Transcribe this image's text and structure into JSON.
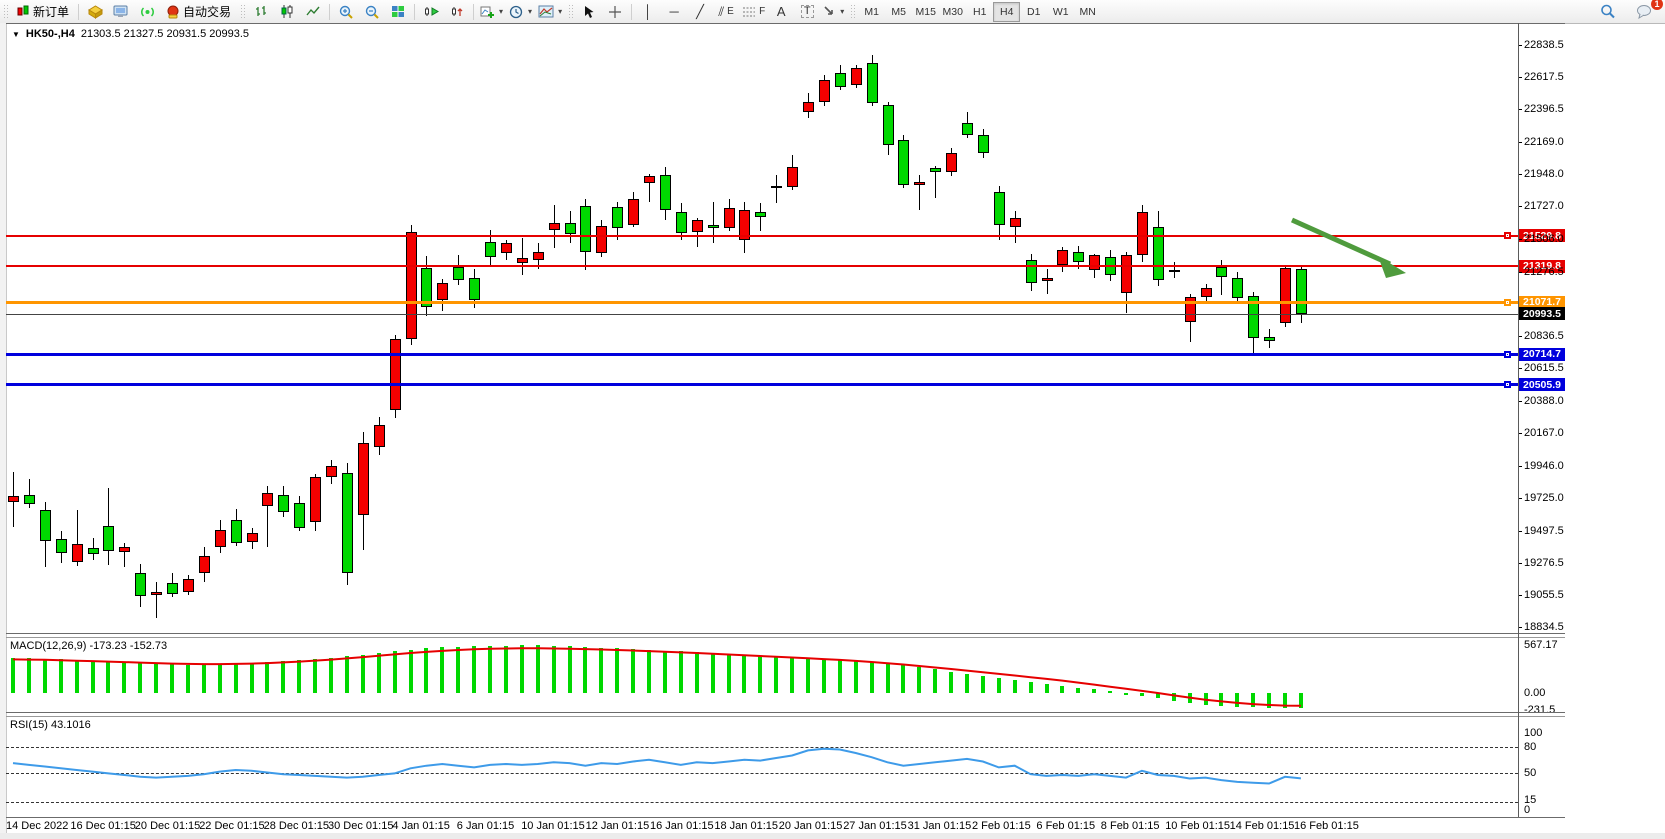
{
  "toolbar": {
    "new_order_label": "新订单",
    "auto_trading_label": "自动交易",
    "timeframes": [
      "M1",
      "M5",
      "M15",
      "M30",
      "H1",
      "H4",
      "D1",
      "W1",
      "MN"
    ],
    "active_timeframe": "H4",
    "notification_count": "1",
    "text_tool_label": "A",
    "channel_tool_sub": "E",
    "fibo_tool_sub": "F",
    "label_tool_label": "T"
  },
  "chart_data": {
    "type": "candlestick",
    "symbol": "HK50-,H4",
    "ohlc_text": "21303.5 21327.5 20931.5 20993.5",
    "last_ohlc": {
      "open": 21303.5,
      "high": 21327.5,
      "low": 20931.5,
      "close": 20993.5
    },
    "current_price": 20993.5,
    "up_color": "#f40000",
    "down_color": "#00d800",
    "y_axis_ticks": [
      22838.5,
      22617.5,
      22396.5,
      22169.0,
      21948.0,
      21727.0,
      21506.0,
      21276.5,
      20836.5,
      20615.5,
      20388.0,
      20167.0,
      19946.0,
      19725.0,
      19497.5,
      19276.5,
      19055.5,
      18834.5
    ],
    "hlines": [
      {
        "price": 21529.8,
        "color": "#e60000",
        "thick": 2,
        "handle": true
      },
      {
        "price": 21319.8,
        "color": "#e60000",
        "thick": 2,
        "handle": false
      },
      {
        "price": 21071.7,
        "color": "#ff9500",
        "thick": 3,
        "handle": true
      },
      {
        "price": 20714.7,
        "color": "#0000dd",
        "thick": 3,
        "handle": true
      },
      {
        "price": 20505.9,
        "color": "#0000dd",
        "thick": 3,
        "handle": true
      }
    ],
    "x_labels": [
      "14 Dec 2022",
      "16 Dec 01:15",
      "20 Dec 01:15",
      "22 Dec 01:15",
      "28 Dec 01:15",
      "30 Dec 01:15",
      "4 Jan 01:15",
      "6 Jan 01:15",
      "10 Jan 01:15",
      "12 Jan 01:15",
      "16 Jan 01:15",
      "18 Jan 01:15",
      "20 Jan 01:15",
      "27 Jan 01:15",
      "31 Jan 01:15",
      "2 Feb 01:15",
      "6 Feb 01:15",
      "8 Feb 01:15",
      "10 Feb 01:15",
      "14 Feb 01:15",
      "16 Feb 01:15"
    ],
    "candles": [
      [
        19700,
        19906,
        19528,
        19740
      ],
      [
        19745,
        19858,
        19660,
        19686
      ],
      [
        19645,
        19700,
        19256,
        19430
      ],
      [
        19447,
        19500,
        19283,
        19352
      ],
      [
        19285,
        19645,
        19260,
        19413
      ],
      [
        19386,
        19450,
        19300,
        19345
      ],
      [
        19536,
        19796,
        19266,
        19360
      ],
      [
        19359,
        19420,
        19256,
        19393
      ],
      [
        19214,
        19274,
        18979,
        19057
      ],
      [
        19064,
        19153,
        18903,
        19083
      ],
      [
        19146,
        19212,
        19050,
        19071
      ],
      [
        19085,
        19200,
        19060,
        19173
      ],
      [
        19212,
        19393,
        19150,
        19331
      ],
      [
        19393,
        19578,
        19350,
        19509
      ],
      [
        19578,
        19650,
        19400,
        19420
      ],
      [
        19427,
        19520,
        19380,
        19490
      ],
      [
        19670,
        19810,
        19390,
        19760
      ],
      [
        19750,
        19810,
        19600,
        19630
      ],
      [
        19690,
        19740,
        19500,
        19520
      ],
      [
        19560,
        19890,
        19500,
        19870
      ],
      [
        19870,
        19990,
        19820,
        19950
      ],
      [
        19900,
        19970,
        19129,
        19212
      ],
      [
        19612,
        20183,
        19372,
        20107
      ],
      [
        20080,
        20286,
        20020,
        20231
      ],
      [
        20330,
        20850,
        20280,
        20816
      ],
      [
        20816,
        21600,
        20780,
        21554
      ],
      [
        21307,
        21390,
        20980,
        21039
      ],
      [
        21087,
        21230,
        21010,
        21204
      ],
      [
        21314,
        21397,
        21190,
        21225
      ],
      [
        21238,
        21300,
        21032,
        21087
      ],
      [
        21486,
        21568,
        21330,
        21383
      ],
      [
        21410,
        21500,
        21360,
        21479
      ],
      [
        21341,
        21513,
        21259,
        21375
      ],
      [
        21362,
        21480,
        21300,
        21417
      ],
      [
        21568,
        21740,
        21444,
        21616
      ],
      [
        21616,
        21700,
        21480,
        21540
      ],
      [
        21732,
        21780,
        21294,
        21417
      ],
      [
        21410,
        21640,
        21380,
        21595
      ],
      [
        21726,
        21760,
        21500,
        21582
      ],
      [
        21602,
        21829,
        21588,
        21781
      ],
      [
        21890,
        21950,
        21760,
        21939
      ],
      [
        21945,
        22000,
        21636,
        21705
      ],
      [
        21692,
        21750,
        21500,
        21547
      ],
      [
        21554,
        21650,
        21451,
        21636
      ],
      [
        21602,
        21760,
        21480,
        21582
      ],
      [
        21582,
        21780,
        21560,
        21719
      ],
      [
        21499,
        21760,
        21410,
        21705
      ],
      [
        21690,
        21750,
        21560,
        21655
      ],
      [
        21860,
        21945,
        21753,
        21872
      ],
      [
        21860,
        22080,
        21840,
        22000
      ],
      [
        22375,
        22508,
        22340,
        22445
      ],
      [
        22445,
        22632,
        22420,
        22598
      ],
      [
        22644,
        22700,
        22530,
        22548
      ],
      [
        22563,
        22700,
        22540,
        22680
      ],
      [
        22714,
        22770,
        22420,
        22440
      ],
      [
        22426,
        22450,
        22080,
        22151
      ],
      [
        22185,
        22220,
        21856,
        21876
      ],
      [
        21880,
        21945,
        21705,
        21897
      ],
      [
        21993,
        22010,
        21787,
        21966
      ],
      [
        21966,
        22131,
        21940,
        22096
      ],
      [
        22302,
        22378,
        22200,
        22220
      ],
      [
        22220,
        22260,
        22060,
        22096
      ],
      [
        21829,
        21870,
        21499,
        21602
      ],
      [
        21588,
        21700,
        21480,
        21650
      ],
      [
        21361,
        21400,
        21150,
        21203
      ],
      [
        21220,
        21300,
        21130,
        21235
      ],
      [
        21327,
        21450,
        21280,
        21430
      ],
      [
        21417,
        21460,
        21300,
        21348
      ],
      [
        21293,
        21400,
        21240,
        21396
      ],
      [
        21382,
        21430,
        21220,
        21259
      ],
      [
        21135,
        21420,
        21000,
        21396
      ],
      [
        21396,
        21740,
        21350,
        21692
      ],
      [
        21588,
        21700,
        21180,
        21224
      ],
      [
        21290,
        21345,
        21235,
        21292
      ],
      [
        20936,
        21130,
        20799,
        21108
      ],
      [
        21108,
        21200,
        21080,
        21170
      ],
      [
        21314,
        21360,
        21120,
        21245
      ],
      [
        21238,
        21280,
        21080,
        21101
      ],
      [
        21115,
        21140,
        20723,
        20826
      ],
      [
        20833,
        20890,
        20760,
        20806
      ],
      [
        20929,
        21330,
        20900,
        21307
      ],
      [
        21303.5,
        21327.5,
        20931.5,
        20993.5
      ]
    ],
    "indicators": {
      "macd": {
        "label": "MACD(12,26,9) -173.23 -152.73",
        "axis_labels": [
          "567.17",
          "0.00",
          "-231.5"
        ],
        "histogram": [
          420,
          414,
          408,
          400,
          392,
          385,
          378,
          370,
          360,
          350,
          340,
          332,
          334,
          342,
          352,
          360,
          370,
          382,
          395,
          408,
          420,
          436,
          455,
          478,
          500,
          518,
          532,
          543,
          552,
          558,
          562,
          565,
          567,
          566,
          562,
          556,
          548,
          540,
          532,
          524,
          515,
          506,
          496,
          486,
          476,
          466,
          456,
          446,
          436,
          426,
          418,
          410,
          400,
          388,
          372,
          352,
          330,
          306,
          282,
          256,
          230,
          204,
          178,
          152,
          126,
          102,
          80,
          62,
          46,
          20,
          -8,
          -35,
          -65,
          -95,
          -120,
          -140,
          -155,
          -165,
          -172,
          -177,
          -175,
          -173.23
        ],
        "signal": [
          400,
          398,
          395,
          390,
          385,
          380,
          374,
          368,
          362,
          356,
          350,
          346,
          344,
          344,
          346,
          350,
          356,
          364,
          374,
          386,
          398,
          412,
          428,
          444,
          460,
          476,
          490,
          502,
          512,
          520,
          526,
          530,
          532,
          532,
          530,
          527,
          523,
          518,
          512,
          506,
          499,
          492,
          484,
          476,
          468,
          459,
          450,
          441,
          432,
          423,
          414,
          404,
          394,
          382,
          369,
          355,
          339,
          322,
          304,
          286,
          267,
          248,
          228,
          208,
          188,
          168,
          148,
          124,
          100,
          75,
          50,
          25,
          0,
          -28,
          -55,
          -80,
          -100,
          -118,
          -132,
          -143,
          -150,
          -152.73
        ]
      },
      "rsi": {
        "label": "RSI(15) 43.1016",
        "axis_labels": [
          "100",
          "80",
          "50",
          "15",
          "0"
        ],
        "levels": [
          80,
          50,
          15
        ],
        "values": [
          61,
          59,
          57,
          55,
          53,
          51,
          49,
          47,
          45,
          44,
          45,
          46,
          48,
          51,
          53,
          52,
          50,
          48,
          47,
          46,
          45,
          44,
          45,
          47,
          49,
          55,
          58,
          60,
          58,
          56,
          59,
          60,
          59,
          60,
          62,
          61,
          58,
          61,
          60,
          63,
          65,
          62,
          59,
          62,
          61,
          63,
          65,
          64,
          67,
          70,
          76,
          78,
          77,
          73,
          68,
          62,
          58,
          60,
          62,
          64,
          66,
          63,
          56,
          58,
          48,
          46,
          47,
          46,
          48,
          46,
          44,
          52,
          47,
          46,
          43,
          44,
          41,
          39,
          38,
          37,
          45,
          43.1
        ]
      }
    },
    "annotation": {
      "type": "arrow-down-right",
      "color": "#4f9b3d"
    }
  }
}
